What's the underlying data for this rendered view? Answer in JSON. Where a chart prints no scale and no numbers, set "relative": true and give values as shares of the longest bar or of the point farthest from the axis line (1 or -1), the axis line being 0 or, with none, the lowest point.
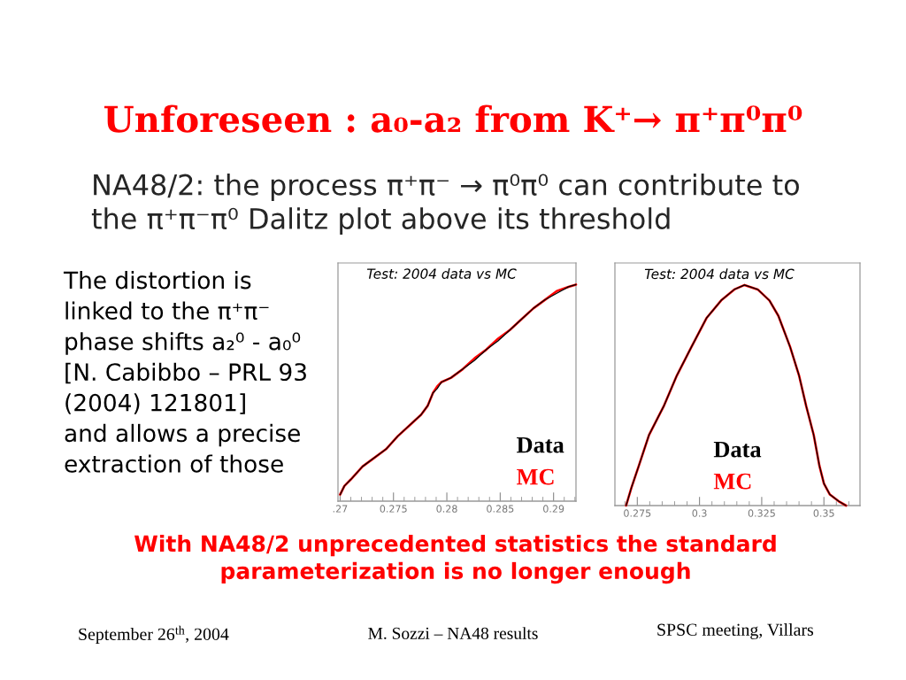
{
  "chart_data": [
    {
      "type": "other",
      "title": "Unforeseen : a₀-a₂ from K⁺→ π⁺π⁰π⁰",
      "subtitle": "NA48/2: the process π⁺π⁻ → π⁰π⁰ can contribute to\nthe π⁺π⁻π⁰ Dalitz plot above its threshold",
      "annotations": [
        "The distortion is\nlinked to the π⁺π⁻\nphase shifts a₂⁰ - a₀⁰\n[N. Cabibbo – PRL 93\n(2004) 121801]\nand allows a precise\nextraction of those",
        "With NA48/2 unprecedented statistics the standard\nparameterization is no longer enough",
        "September 26$^{th}$, 2004",
        "M. Sozzi – NA48 results",
        "SPSC meeting, Villars"
      ]
    },
    {
      "type": "line",
      "title": "Test: 2004 data vs MC",
      "relative": true,
      "xlim": [
        0.2698,
        0.2921
      ],
      "xticks": [
        {
          "value": 0.27,
          "label": ".27"
        },
        0.275,
        0.28,
        0.285,
        0.29
      ],
      "legend": "bottom right",
      "series": [
        {
          "name": "Data",
          "color": "#000000",
          "x": [
            0.27,
            0.2704,
            0.271,
            0.2721,
            0.2732,
            0.2743,
            0.2754,
            0.2765,
            0.2776,
            0.2782,
            0.2787,
            0.2791,
            0.2795,
            0.2804,
            0.2815,
            0.2826,
            0.2837,
            0.2848,
            0.2859,
            0.287,
            0.2881,
            0.2892,
            0.2903,
            0.2914,
            0.2921
          ],
          "values": [
            0.03,
            0.07,
            0.1,
            0.16,
            0.2,
            0.24,
            0.3,
            0.35,
            0.4,
            0.44,
            0.5,
            0.52,
            0.55,
            0.57,
            0.61,
            0.65,
            0.7,
            0.74,
            0.79,
            0.84,
            0.89,
            0.93,
            0.96,
            0.99,
            1.0
          ]
        },
        {
          "name": "MC",
          "color": "#ff0000",
          "x": [
            0.27,
            0.2704,
            0.271,
            0.2721,
            0.2732,
            0.2743,
            0.2754,
            0.2765,
            0.2776,
            0.2782,
            0.2787,
            0.2791,
            0.2795,
            0.2804,
            0.2815,
            0.2826,
            0.2837,
            0.2848,
            0.2859,
            0.287,
            0.2881,
            0.2892,
            0.2903,
            0.2914,
            0.2921
          ],
          "values": [
            0.03,
            0.07,
            0.1,
            0.16,
            0.2,
            0.24,
            0.3,
            0.35,
            0.4,
            0.44,
            0.5,
            0.53,
            0.55,
            0.57,
            0.61,
            0.66,
            0.7,
            0.75,
            0.79,
            0.84,
            0.89,
            0.93,
            0.97,
            0.99,
            1.0
          ]
        }
      ]
    },
    {
      "type": "line",
      "title": "Test: 2004 data vs MC",
      "relative": true,
      "xlim": [
        0.266,
        0.3645
      ],
      "xticks": [
        0.275,
        0.3,
        0.325,
        0.35
      ],
      "legend": "bottom",
      "series": [
        {
          "name": "Data",
          "color": "#000000",
          "x": [
            0.2705,
            0.2726,
            0.2756,
            0.2797,
            0.2856,
            0.2909,
            0.2968,
            0.3028,
            0.3087,
            0.314,
            0.3181,
            0.3234,
            0.3281,
            0.3317,
            0.3364,
            0.34,
            0.3429,
            0.3459,
            0.3482,
            0.35,
            0.3524,
            0.3559,
            0.3589
          ],
          "values": [
            0,
            0.08,
            0.18,
            0.32,
            0.45,
            0.59,
            0.72,
            0.85,
            0.93,
            0.98,
            1.0,
            0.98,
            0.93,
            0.86,
            0.72,
            0.59,
            0.45,
            0.32,
            0.18,
            0.1,
            0.05,
            0.02,
            0.0
          ]
        },
        {
          "name": "MC",
          "color": "#ff0000",
          "x": [
            0.2705,
            0.2726,
            0.2756,
            0.2797,
            0.2856,
            0.2909,
            0.2968,
            0.3028,
            0.3087,
            0.314,
            0.3181,
            0.3234,
            0.3281,
            0.3317,
            0.3364,
            0.34,
            0.3429,
            0.3459,
            0.3482,
            0.35,
            0.3524,
            0.3559,
            0.3589
          ],
          "values": [
            0,
            0.08,
            0.18,
            0.32,
            0.45,
            0.59,
            0.72,
            0.85,
            0.93,
            0.98,
            1.0,
            0.98,
            0.93,
            0.86,
            0.72,
            0.59,
            0.45,
            0.32,
            0.18,
            0.1,
            0.05,
            0.02,
            0.0
          ]
        }
      ]
    }
  ]
}
